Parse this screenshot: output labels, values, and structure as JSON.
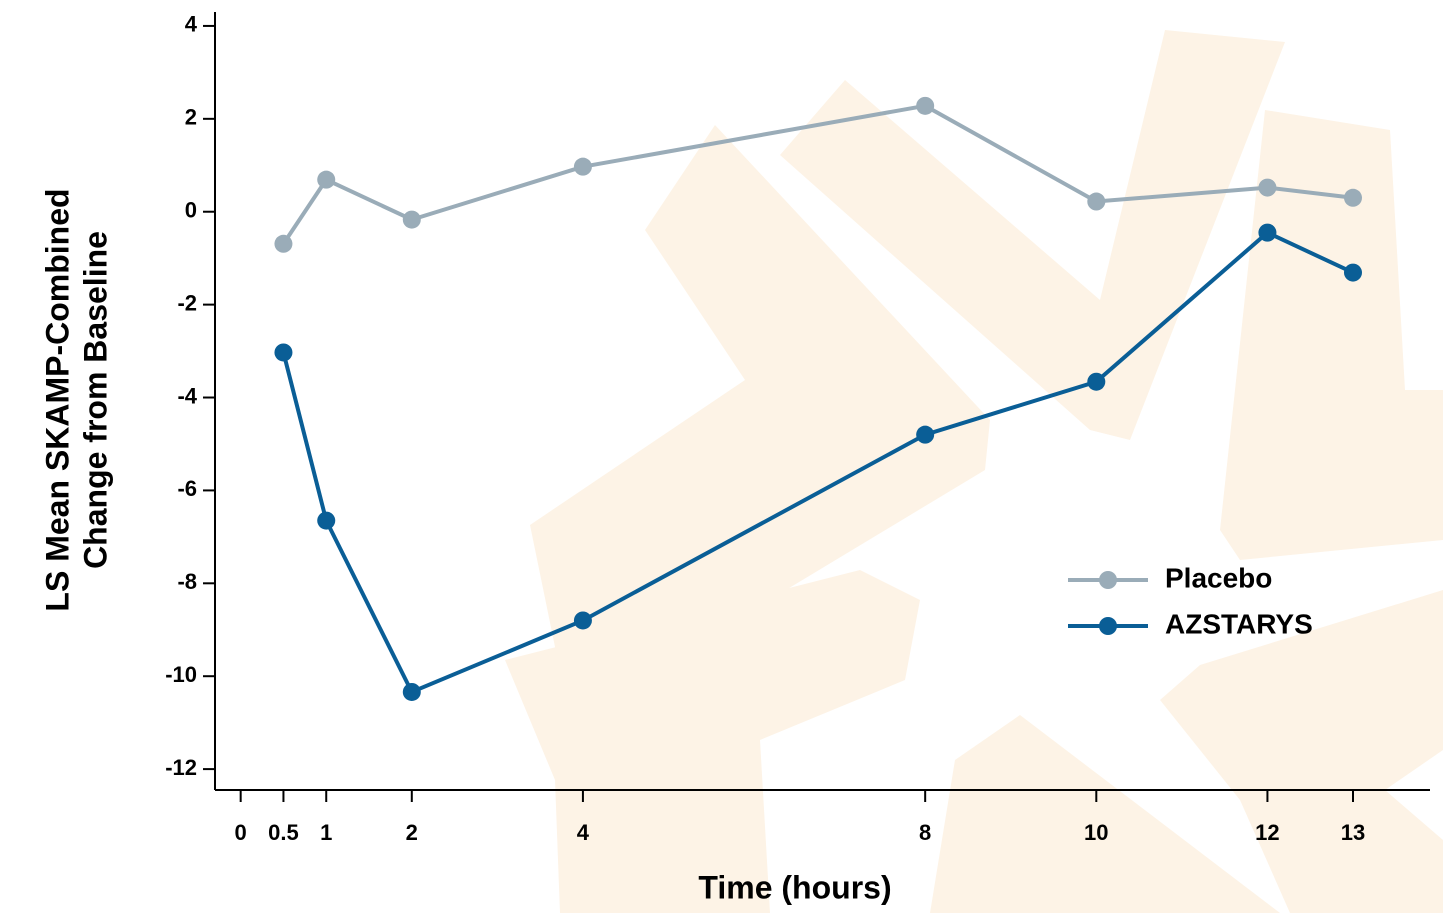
{
  "chart_data": {
    "type": "line",
    "xlabel": "Time (hours)",
    "ylabel": [
      "LS Mean SKAMP-Combined",
      "Change from Baseline"
    ],
    "x": [
      0.5,
      1,
      2,
      4,
      8,
      10,
      12,
      13
    ],
    "series": [
      {
        "name": "Placebo",
        "color": "#9aacb8",
        "values": [
          -0.69,
          0.69,
          -0.17,
          0.97,
          2.28,
          0.22,
          0.52,
          0.3
        ]
      },
      {
        "name": "AZSTARYS",
        "color": "#0a5e96",
        "values": [
          -3.03,
          -6.65,
          -10.34,
          -8.8,
          -4.8,
          -3.66,
          -0.45,
          -1.31
        ]
      }
    ],
    "xlim": [
      -0.3,
      13.9
    ],
    "xticks": [
      0,
      0.5,
      1,
      2,
      4,
      8,
      10,
      12,
      13
    ],
    "ylim": [
      -12.45,
      4.3
    ],
    "yticks": [
      4,
      2,
      0,
      -2,
      -4,
      -6,
      -8,
      -10,
      -12
    ],
    "legend": "right"
  }
}
